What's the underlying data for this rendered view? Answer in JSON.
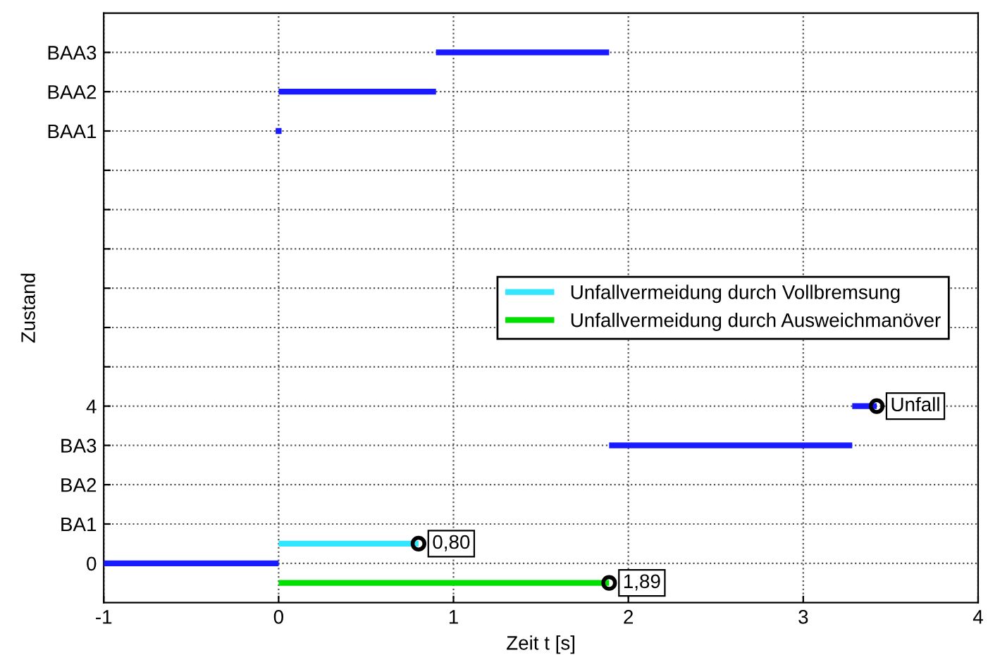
{
  "chart_data": {
    "type": "line",
    "xlabel": "Zeit t [s]",
    "ylabel": "Zustand",
    "xlim": [
      -1,
      4
    ],
    "ylim": [
      -1,
      14
    ],
    "xticks": [
      -1,
      0,
      1,
      2,
      3,
      4
    ],
    "yticks": [
      {
        "value": 0,
        "label": "0"
      },
      {
        "value": 1,
        "label": "BA1"
      },
      {
        "value": 2,
        "label": "BA2"
      },
      {
        "value": 3,
        "label": "BA3"
      },
      {
        "value": 4,
        "label": "4"
      },
      {
        "value": 5,
        "label": null
      },
      {
        "value": 6,
        "label": null
      },
      {
        "value": 7,
        "label": null
      },
      {
        "value": 8,
        "label": null
      },
      {
        "value": 9,
        "label": null
      },
      {
        "value": 10,
        "label": null
      },
      {
        "value": 11,
        "label": "BAA1"
      },
      {
        "value": 12,
        "label": "BAA2"
      },
      {
        "value": 13,
        "label": "BAA3"
      }
    ],
    "grid": true,
    "legend": "right",
    "series": [
      {
        "color": "#1a1aff",
        "x": [
          -1,
          0
        ],
        "values": [
          0,
          0
        ]
      },
      {
        "type": "scatter",
        "color": "#1a1aff",
        "marker": "square",
        "x": [
          0
        ],
        "values": [
          11
        ]
      },
      {
        "color": "#1a1aff",
        "x": [
          0,
          0.9
        ],
        "values": [
          12,
          12
        ]
      },
      {
        "color": "#1a1aff",
        "x": [
          0.9,
          1.89
        ],
        "values": [
          13,
          13
        ]
      },
      {
        "color": "#1a1aff",
        "x": [
          1.89,
          3.28
        ],
        "values": [
          3,
          3
        ]
      },
      {
        "color": "#1a1aff",
        "x": [
          3.28,
          3.42
        ],
        "values": [
          4,
          4
        ]
      },
      {
        "name": "Unfallvermeidung durch Vollbremsung",
        "color": "#33e6ff",
        "x": [
          0,
          0.8
        ],
        "values": [
          0.5,
          0.5
        ]
      },
      {
        "name": "Unfallvermeidung durch Ausweichmanöver",
        "color": "#00e000",
        "x": [
          0,
          1.89
        ],
        "values": [
          -0.5,
          -0.5
        ]
      },
      {
        "type": "scatter",
        "color": "#000000",
        "marker": "circle",
        "x": [
          0.8,
          1.89,
          3.42
        ],
        "values": [
          0.5,
          -0.5,
          4
        ]
      }
    ],
    "annotations": [
      {
        "text": "0,80",
        "x": 0.8,
        "y": 0.5
      },
      {
        "text": "1,89",
        "x": 1.89,
        "y": -0.5
      },
      {
        "text": "Unfall",
        "x": 3.42,
        "y": 4
      }
    ]
  }
}
